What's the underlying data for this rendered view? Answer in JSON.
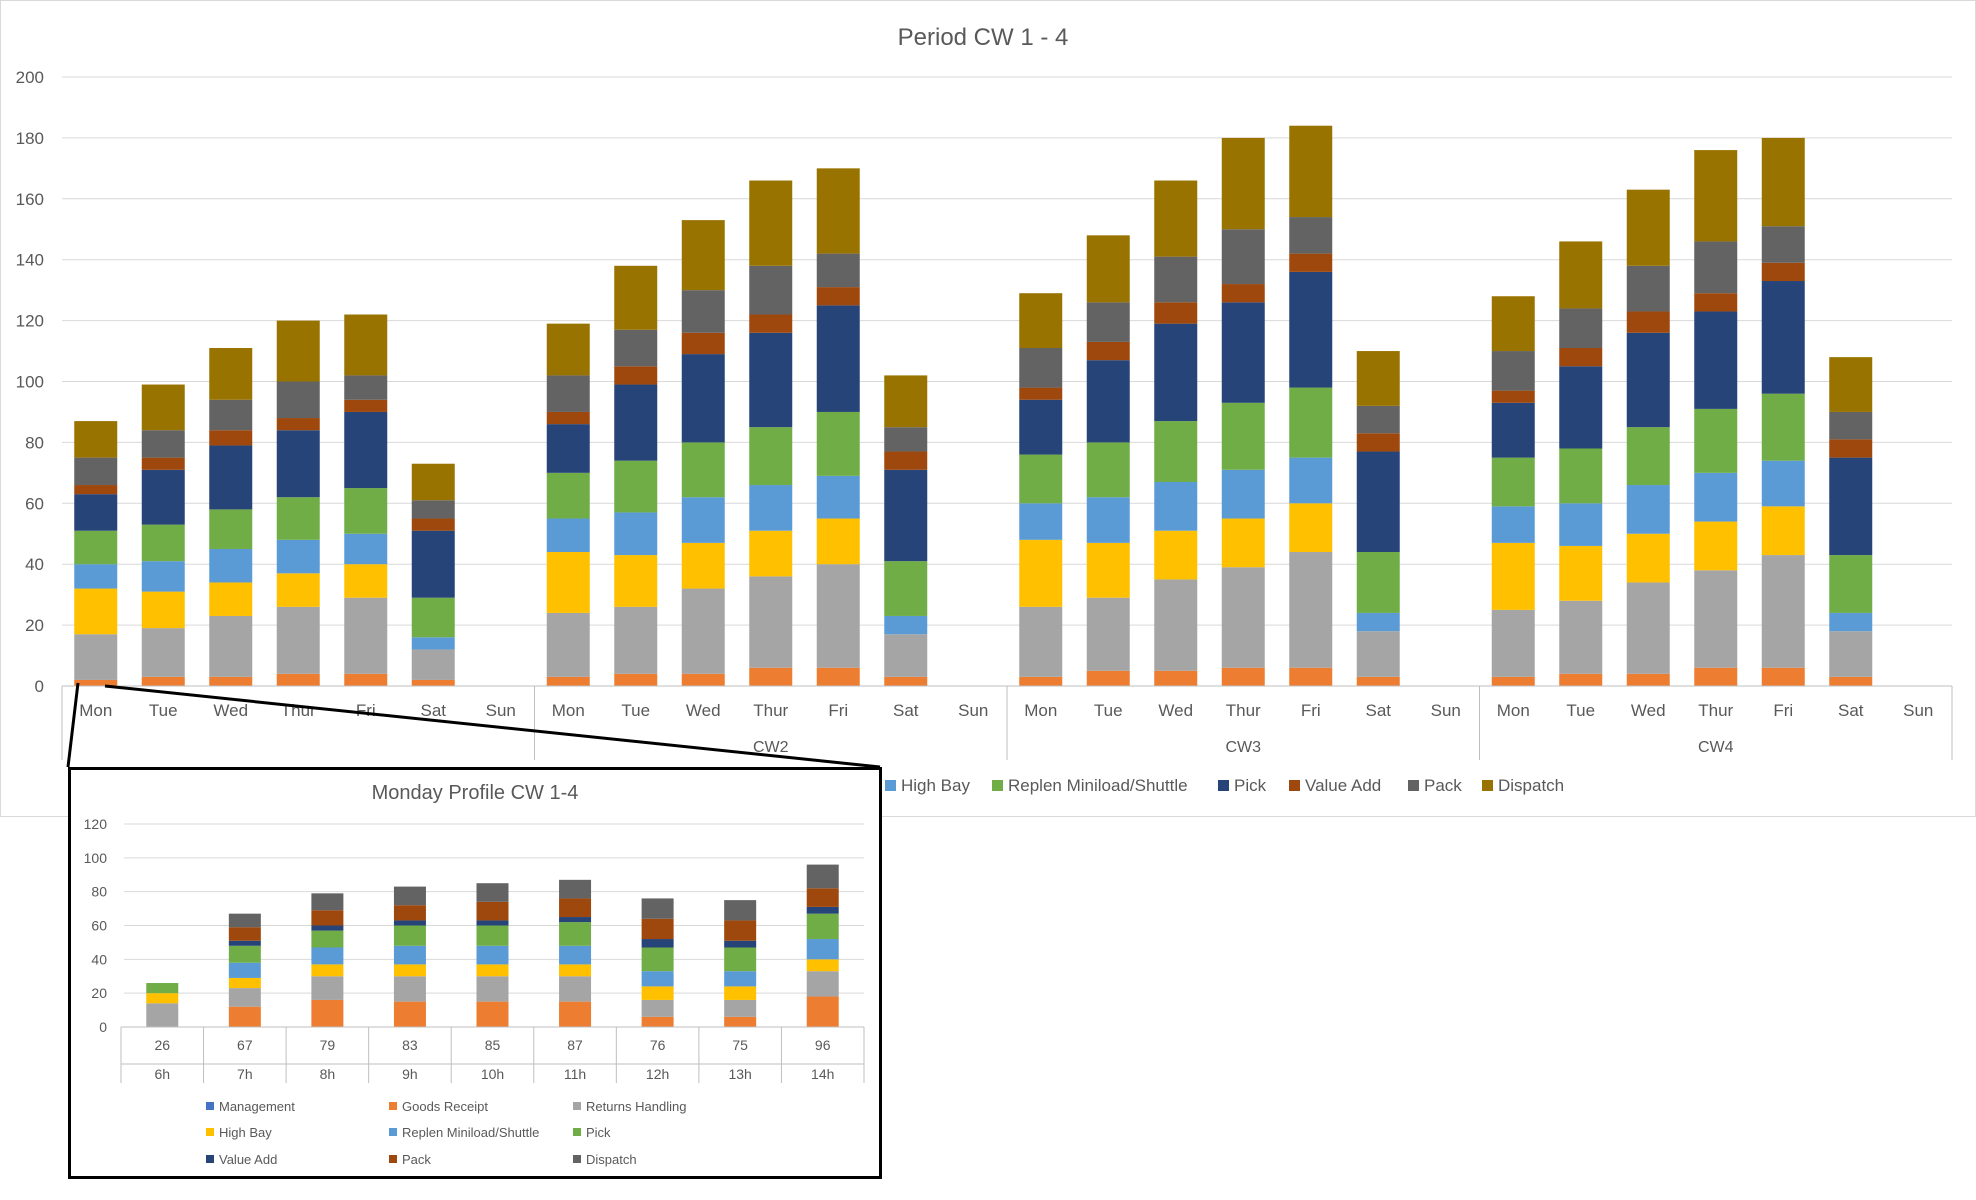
{
  "chart_data": [
    {
      "type": "bar",
      "stacked": true,
      "title": "Period CW 1 - 4",
      "xlabel": "",
      "ylabel": "",
      "ylim": [
        0,
        200
      ],
      "yticks": [
        0,
        20,
        40,
        60,
        80,
        100,
        120,
        140,
        160,
        180,
        200
      ],
      "grid": true,
      "legend_position": "bottom",
      "groups": [
        "",
        "CW2",
        "CW3",
        "CW4"
      ],
      "categories": [
        "Mon",
        "Tue",
        "Wed",
        "Thur",
        "Fri",
        "Sat",
        "Sun"
      ],
      "series": [
        {
          "name": "Goods Receipt",
          "color": "#ED7D31",
          "values": [
            [
              2,
              3,
              3,
              4,
              4,
              2,
              0
            ],
            [
              3,
              4,
              4,
              6,
              6,
              3,
              0
            ],
            [
              3,
              5,
              5,
              6,
              6,
              3,
              0
            ],
            [
              3,
              4,
              4,
              6,
              6,
              3,
              0
            ]
          ]
        },
        {
          "name": "Returns Handling",
          "color": "#A5A5A5",
          "values": [
            [
              15,
              16,
              20,
              22,
              25,
              10,
              0
            ],
            [
              21,
              22,
              28,
              30,
              34,
              14,
              0
            ],
            [
              23,
              24,
              30,
              33,
              38,
              15,
              0
            ],
            [
              22,
              24,
              30,
              32,
              37,
              15,
              0
            ]
          ]
        },
        {
          "name": "",
          "color": "#FFC000",
          "values": [
            [
              15,
              12,
              11,
              11,
              11,
              0,
              0
            ],
            [
              20,
              17,
              15,
              15,
              15,
              0,
              0
            ],
            [
              22,
              18,
              16,
              16,
              16,
              0,
              0
            ],
            [
              22,
              18,
              16,
              16,
              16,
              0,
              0
            ]
          ]
        },
        {
          "name": "High Bay",
          "color": "#5B9BD5",
          "values": [
            [
              8,
              10,
              11,
              11,
              10,
              4,
              0
            ],
            [
              11,
              14,
              15,
              15,
              14,
              6,
              0
            ],
            [
              12,
              15,
              16,
              16,
              15,
              6,
              0
            ],
            [
              12,
              14,
              16,
              16,
              15,
              6,
              0
            ]
          ]
        },
        {
          "name": "Replen Miniload/Shuttle",
          "color": "#70AD47",
          "values": [
            [
              11,
              12,
              13,
              14,
              15,
              13,
              0
            ],
            [
              15,
              17,
              18,
              19,
              21,
              18,
              0
            ],
            [
              16,
              18,
              20,
              22,
              23,
              20,
              0
            ],
            [
              16,
              18,
              19,
              21,
              22,
              19,
              0
            ]
          ]
        },
        {
          "name": "Pick",
          "color": "#264478",
          "values": [
            [
              12,
              18,
              21,
              22,
              25,
              22,
              0
            ],
            [
              16,
              25,
              29,
              31,
              35,
              30,
              0
            ],
            [
              18,
              27,
              32,
              33,
              38,
              33,
              0
            ],
            [
              18,
              27,
              31,
              32,
              37,
              32,
              0
            ]
          ]
        },
        {
          "name": "Value Add",
          "color": "#9E480E",
          "values": [
            [
              3,
              4,
              5,
              4,
              4,
              4,
              0
            ],
            [
              4,
              6,
              7,
              6,
              6,
              6,
              0
            ],
            [
              4,
              6,
              7,
              6,
              6,
              6,
              0
            ],
            [
              4,
              6,
              7,
              6,
              6,
              6,
              0
            ]
          ]
        },
        {
          "name": "Pack",
          "color": "#636363",
          "values": [
            [
              9,
              9,
              10,
              12,
              8,
              6,
              0
            ],
            [
              12,
              12,
              14,
              16,
              11,
              8,
              0
            ],
            [
              13,
              13,
              15,
              18,
              12,
              9,
              0
            ],
            [
              13,
              13,
              15,
              17,
              12,
              9,
              0
            ]
          ]
        },
        {
          "name": "Dispatch",
          "color": "#997300",
          "values": [
            [
              12,
              15,
              17,
              20,
              20,
              12,
              0
            ],
            [
              17,
              21,
              23,
              28,
              28,
              17,
              0
            ],
            [
              18,
              22,
              25,
              30,
              30,
              18,
              0
            ],
            [
              18,
              22,
              25,
              30,
              29,
              18,
              0
            ]
          ]
        }
      ]
    },
    {
      "type": "bar",
      "stacked": true,
      "title": "Monday Profile CW 1-4",
      "xlabel": "",
      "ylabel": "",
      "ylim": [
        0,
        120
      ],
      "yticks": [
        0,
        20,
        40,
        60,
        80,
        100,
        120
      ],
      "grid": true,
      "legend_position": "bottom",
      "categories": [
        "6h",
        "7h",
        "8h",
        "9h",
        "10h",
        "11h",
        "12h",
        "13h",
        "14h"
      ],
      "totals": [
        "26",
        "67",
        "79",
        "83",
        "85",
        "87",
        "76",
        "75",
        "96"
      ],
      "series": [
        {
          "name": "Management",
          "color": "#4472C4",
          "values": [
            0,
            0,
            0,
            0,
            0,
            0,
            0,
            0,
            0
          ]
        },
        {
          "name": "Goods Receipt",
          "color": "#ED7D31",
          "values": [
            0,
            12,
            16,
            15,
            15,
            15,
            6,
            6,
            18
          ]
        },
        {
          "name": "Returns Handling",
          "color": "#A5A5A5",
          "values": [
            14,
            11,
            14,
            15,
            15,
            15,
            10,
            10,
            15
          ]
        },
        {
          "name": "High Bay",
          "color": "#FFC000",
          "values": [
            6,
            6,
            7,
            7,
            7,
            7,
            8,
            8,
            7
          ]
        },
        {
          "name": "Replen Miniload/Shuttle",
          "color": "#5B9BD5",
          "values": [
            0,
            9,
            10,
            11,
            11,
            11,
            9,
            9,
            12
          ]
        },
        {
          "name": "Pick",
          "color": "#70AD47",
          "values": [
            6,
            10,
            10,
            12,
            12,
            14,
            14,
            14,
            15
          ]
        },
        {
          "name": "Value Add",
          "color": "#264478",
          "values": [
            0,
            3,
            3,
            3,
            3,
            3,
            5,
            4,
            4
          ]
        },
        {
          "name": "Pack",
          "color": "#9E480E",
          "values": [
            0,
            8,
            9,
            9,
            11,
            11,
            12,
            12,
            11
          ]
        },
        {
          "name": "Dispatch",
          "color": "#636363",
          "values": [
            0,
            8,
            10,
            11,
            11,
            11,
            12,
            12,
            14
          ]
        }
      ]
    }
  ]
}
